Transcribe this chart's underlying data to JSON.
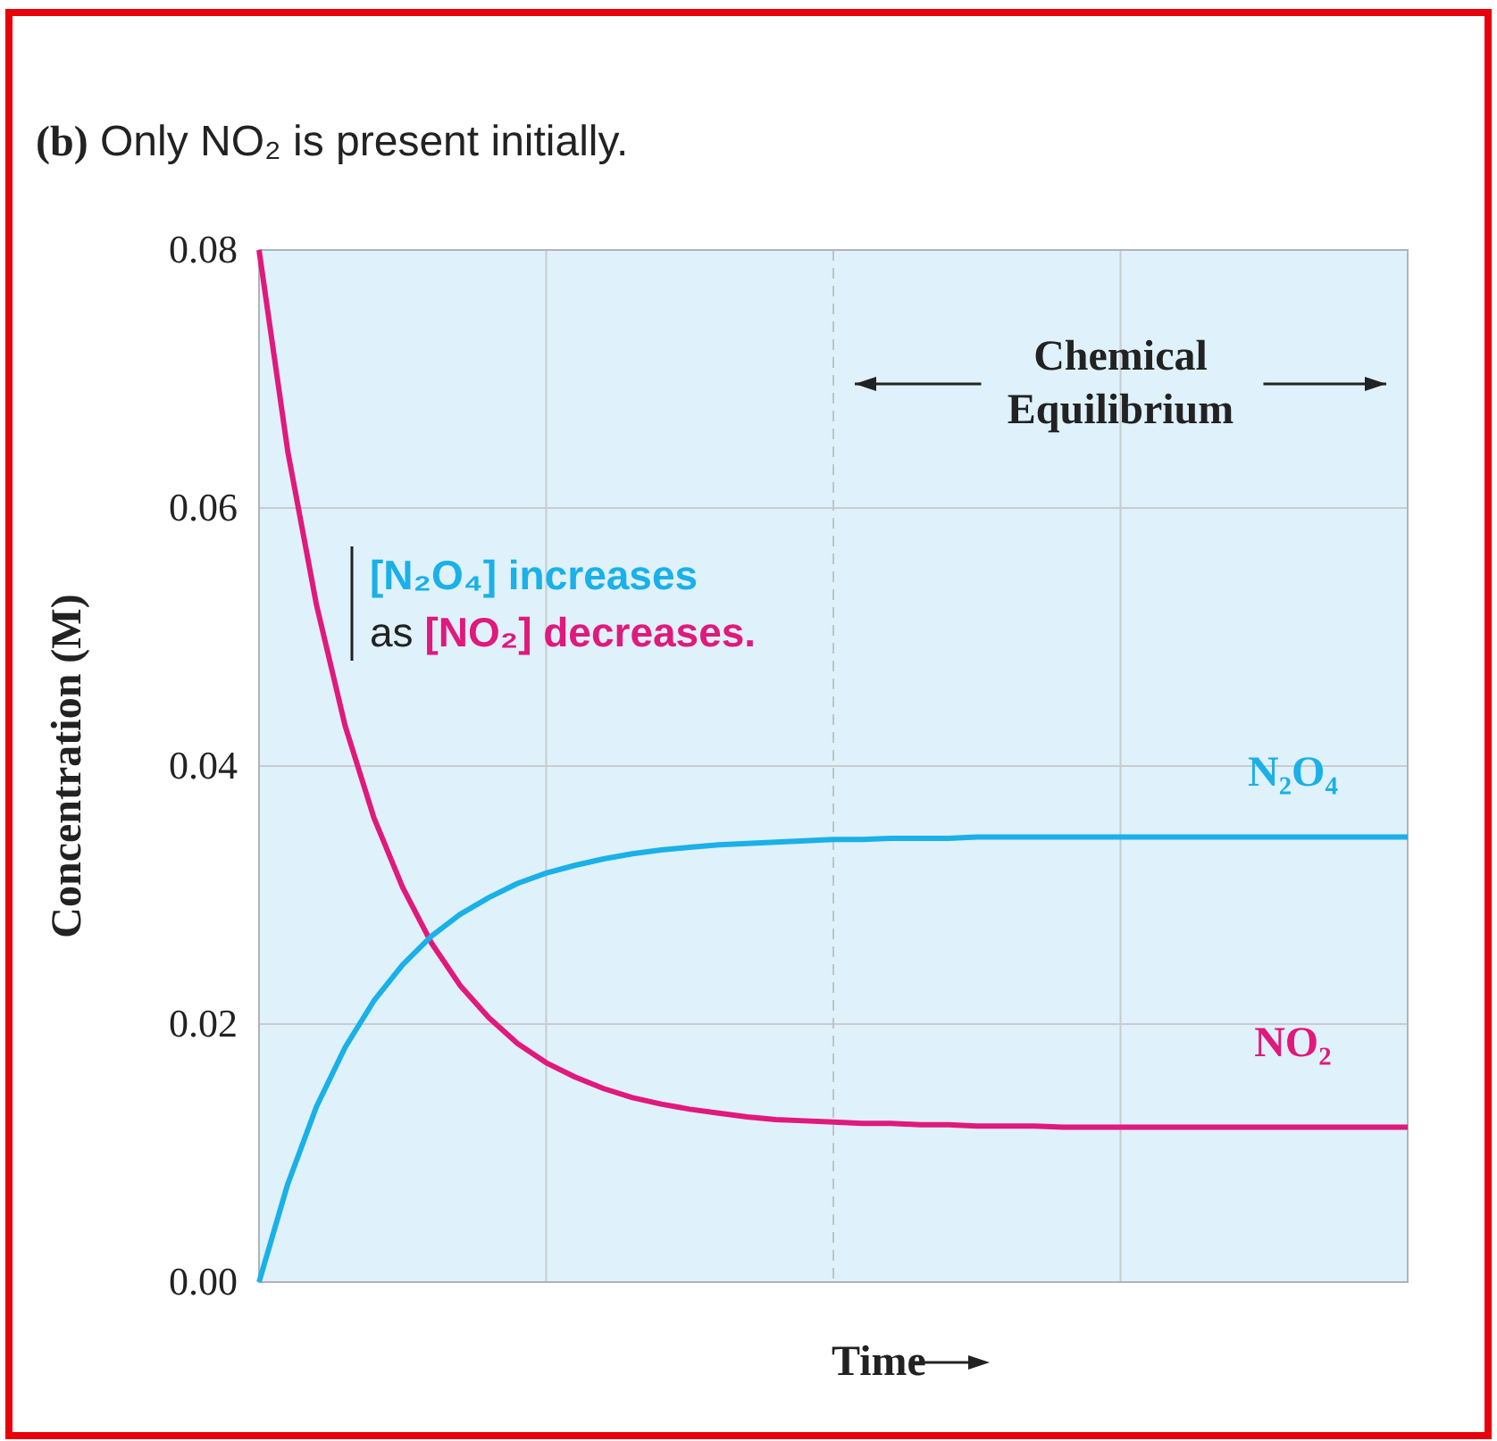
{
  "chart_data": {
    "type": "line",
    "title": "(b) Only NO₂ is present initially.",
    "xlabel": "Time",
    "ylabel": "Concentration (M)",
    "categories": [
      null,
      null,
      null,
      null,
      null,
      null,
      null,
      null,
      null,
      null,
      null,
      null,
      null,
      null,
      null,
      null,
      null,
      null,
      null,
      null,
      null,
      null,
      null,
      null,
      null,
      null,
      null,
      null,
      null,
      null,
      null,
      null,
      null,
      null,
      null,
      null,
      null,
      null,
      null,
      null,
      null
    ],
    "series": [
      {
        "name": "NO₂",
        "color": "#e0197d",
        "values": [
          0.08,
          0.0644,
          0.0525,
          0.0431,
          0.036,
          0.0306,
          0.0263,
          0.023,
          0.0205,
          0.0185,
          0.017,
          0.0159,
          0.015,
          0.0143,
          0.0138,
          0.0134,
          0.0131,
          0.0128,
          0.0126,
          0.0125,
          0.0124,
          0.0123,
          0.0123,
          0.0122,
          0.0122,
          0.0121,
          0.0121,
          0.0121,
          0.012,
          0.012,
          0.012,
          0.012,
          0.012,
          0.012,
          0.012,
          0.012,
          0.012,
          0.012,
          0.012,
          0.012,
          0.012
        ]
      },
      {
        "name": "N₂O₄",
        "color": "#1ab0e8",
        "values": [
          0,
          0.0076,
          0.0136,
          0.0182,
          0.0218,
          0.0246,
          0.0268,
          0.0285,
          0.0298,
          0.0309,
          0.0317,
          0.0323,
          0.0328,
          0.0332,
          0.0335,
          0.0337,
          0.0339,
          0.034,
          0.0341,
          0.0342,
          0.0343,
          0.0343,
          0.0344,
          0.0344,
          0.0344,
          0.0345,
          0.0345,
          0.0345,
          0.0345,
          0.0345,
          0.0345,
          0.0345,
          0.0345,
          0.0345,
          0.0345,
          0.0345,
          0.0345,
          0.0345,
          0.0345,
          0.0345,
          0.0345
        ]
      }
    ],
    "ylim": [
      0,
      0.08
    ],
    "yticks": [
      {
        "value": 0,
        "label": "0.00"
      },
      {
        "value": 0.02,
        "label": "0.02"
      },
      {
        "value": 0.04,
        "label": "0.04"
      },
      {
        "value": 0.06,
        "label": "0.06"
      },
      {
        "value": 0.08,
        "label": "0.08"
      }
    ],
    "tick_labels": "y",
    "grid": true,
    "legend": false,
    "marker": "none",
    "line_style": "solid",
    "ref_lines": [
      {
        "axis": "x",
        "label": "Chemical Equilibrium",
        "line_style": "dashed",
        "color": "#c0c4c8"
      }
    ],
    "annotations": [
      "[N₂O₄] increases",
      "as [NO₂] decreases."
    ]
  }
}
